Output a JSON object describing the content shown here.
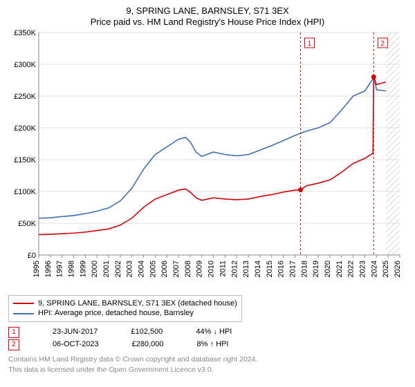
{
  "title_line1": "9, SPRING LANE, BARNSLEY, S71 3EX",
  "title_line2": "Price paid vs. HM Land Registry's House Price Index (HPI)",
  "chart": {
    "type": "line",
    "background_color": "#ffffff",
    "grid_color": "#dddddd",
    "axis_color": "#888888",
    "x_years": [
      1995,
      1996,
      1997,
      1998,
      1999,
      2000,
      2001,
      2002,
      2003,
      2004,
      2005,
      2006,
      2007,
      2008,
      2009,
      2010,
      2011,
      2012,
      2013,
      2014,
      2015,
      2016,
      2017,
      2018,
      2019,
      2020,
      2021,
      2022,
      2023,
      2024,
      2025,
      2026
    ],
    "xtick_every": 1,
    "xlim": [
      1995,
      2026
    ],
    "ylim": [
      0,
      350000
    ],
    "yticks": [
      0,
      50000,
      100000,
      150000,
      200000,
      250000,
      300000,
      350000
    ],
    "ytick_labels": [
      "£0",
      "£50K",
      "£100K",
      "£150K",
      "£200K",
      "£250K",
      "£300K",
      "£350K"
    ],
    "future_hatch_from": 2024.8,
    "series": [
      {
        "id": "hpi",
        "label": "HPI: Average price, detached house, Barnsley",
        "color": "#3a6fb7",
        "width": 1.5,
        "points": [
          [
            1995,
            58000
          ],
          [
            1996,
            58500
          ],
          [
            1997,
            60500
          ],
          [
            1998,
            62000
          ],
          [
            1999,
            65000
          ],
          [
            2000,
            69000
          ],
          [
            2001,
            74000
          ],
          [
            2002,
            85000
          ],
          [
            2003,
            105000
          ],
          [
            2004,
            135000
          ],
          [
            2005,
            158000
          ],
          [
            2006,
            170000
          ],
          [
            2007,
            182000
          ],
          [
            2007.6,
            185000
          ],
          [
            2008,
            178000
          ],
          [
            2008.5,
            162000
          ],
          [
            2009,
            155000
          ],
          [
            2010,
            162000
          ],
          [
            2011,
            158000
          ],
          [
            2012,
            156000
          ],
          [
            2013,
            158000
          ],
          [
            2014,
            165000
          ],
          [
            2015,
            172000
          ],
          [
            2016,
            180000
          ],
          [
            2017,
            188000
          ],
          [
            2018,
            195000
          ],
          [
            2019,
            200000
          ],
          [
            2020,
            208000
          ],
          [
            2021,
            228000
          ],
          [
            2022,
            250000
          ],
          [
            2023,
            258000
          ],
          [
            2023.8,
            280000
          ],
          [
            2024,
            260000
          ],
          [
            2024.8,
            258000
          ]
        ]
      },
      {
        "id": "property",
        "label": "9, SPRING LANE, BARNSLEY, S71 3EX (detached house)",
        "color": "#d40000",
        "width": 1.6,
        "points": [
          [
            1995,
            32000
          ],
          [
            1996,
            32500
          ],
          [
            1997,
            33500
          ],
          [
            1998,
            34500
          ],
          [
            1999,
            36000
          ],
          [
            2000,
            38500
          ],
          [
            2001,
            41000
          ],
          [
            2002,
            47000
          ],
          [
            2003,
            58000
          ],
          [
            2004,
            75000
          ],
          [
            2005,
            88000
          ],
          [
            2006,
            95000
          ],
          [
            2007,
            102000
          ],
          [
            2007.6,
            104000
          ],
          [
            2008,
            99000
          ],
          [
            2008.5,
            90000
          ],
          [
            2009,
            86000
          ],
          [
            2010,
            90000
          ],
          [
            2011,
            88000
          ],
          [
            2012,
            87000
          ],
          [
            2013,
            88000
          ],
          [
            2014,
            92000
          ],
          [
            2015,
            95000
          ],
          [
            2016,
            99000
          ],
          [
            2017,
            102000
          ],
          [
            2017.48,
            102500
          ],
          [
            2018,
            109000
          ],
          [
            2019,
            113000
          ],
          [
            2020,
            118000
          ],
          [
            2021,
            130000
          ],
          [
            2022,
            144000
          ],
          [
            2023,
            152000
          ],
          [
            2023.7,
            160000
          ],
          [
            2023.76,
            280000
          ],
          [
            2024,
            268000
          ],
          [
            2024.8,
            272000
          ]
        ]
      }
    ],
    "markers": [
      {
        "n": "1",
        "x": 2017.48,
        "y": 102500,
        "color": "#d40000"
      },
      {
        "n": "2",
        "x": 2023.76,
        "y": 280000,
        "color": "#d40000"
      }
    ]
  },
  "legend": {
    "box_border": "#bbbbbb",
    "items": [
      {
        "color": "#d40000",
        "label": "9, SPRING LANE, BARNSLEY, S71 3EX (detached house)"
      },
      {
        "color": "#3a6fb7",
        "label": "HPI: Average price, detached house, Barnsley"
      }
    ]
  },
  "annotations": [
    {
      "n": "1",
      "date": "23-JUN-2017",
      "price": "£102,500",
      "pct": "44%",
      "arrow": "↓",
      "suffix": "HPI"
    },
    {
      "n": "2",
      "date": "06-OCT-2023",
      "price": "£280,000",
      "pct": "8%",
      "arrow": "↑",
      "suffix": "HPI"
    }
  ],
  "credits_line1": "Contains HM Land Registry data © Crown copyright and database right 2024.",
  "credits_line2": "This data is licensed under the Open Government Licence v3.0."
}
